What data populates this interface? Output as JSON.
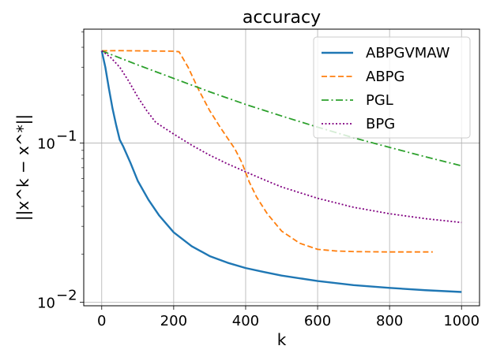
{
  "chart_data": {
    "type": "line",
    "title": "accuracy",
    "xlabel": "k",
    "ylabel": "||x^k − x^*||",
    "xlim": [
      -50,
      1050
    ],
    "ylim": [
      0.0095,
      0.52
    ],
    "yscale": "log",
    "grid": true,
    "legend_position": "top-right",
    "xticks": [
      0,
      200,
      400,
      600,
      800,
      1000
    ],
    "yticks": [
      {
        "value": 0.01,
        "base": "10",
        "exp": "−2"
      },
      {
        "value": 0.1,
        "base": "10",
        "exp": "−1"
      }
    ],
    "series": [
      {
        "name": "ABPGVMAW",
        "color": "#1f77b4",
        "style": "solid",
        "x": [
          0,
          10,
          20,
          30,
          40,
          50,
          60,
          80,
          100,
          130,
          160,
          200,
          250,
          300,
          350,
          400,
          450,
          500,
          600,
          700,
          800,
          900,
          1000
        ],
        "y": [
          0.38,
          0.3,
          0.22,
          0.165,
          0.13,
          0.105,
          0.095,
          0.075,
          0.058,
          0.044,
          0.035,
          0.0275,
          0.0225,
          0.0195,
          0.0177,
          0.0164,
          0.0155,
          0.0147,
          0.0136,
          0.0128,
          0.0123,
          0.0119,
          0.0116
        ]
      },
      {
        "name": "ABPG",
        "color": "#ff7f0e",
        "style": "dashed",
        "x": [
          0,
          50,
          100,
          150,
          200,
          215,
          240,
          270,
          300,
          330,
          370,
          390,
          410,
          430,
          460,
          500,
          550,
          600,
          650,
          700,
          800,
          920
        ],
        "y": [
          0.38,
          0.381,
          0.38,
          0.379,
          0.378,
          0.375,
          0.3,
          0.215,
          0.16,
          0.125,
          0.092,
          0.075,
          0.057,
          0.046,
          0.036,
          0.028,
          0.0235,
          0.0215,
          0.021,
          0.0208,
          0.0207,
          0.0207
        ]
      },
      {
        "name": "PGL",
        "color": "#2ca02c",
        "style": "dashdot",
        "x": [
          0,
          100,
          200,
          300,
          400,
          500,
          600,
          700,
          800,
          900,
          1000
        ],
        "y": [
          0.38,
          0.31,
          0.255,
          0.21,
          0.175,
          0.148,
          0.126,
          0.108,
          0.094,
          0.082,
          0.072
        ]
      },
      {
        "name": "BPG",
        "color": "#800080",
        "style": "dotted",
        "x": [
          0,
          25,
          50,
          75,
          100,
          125,
          150,
          200,
          250,
          300,
          350,
          400,
          450,
          500,
          600,
          700,
          800,
          900,
          1000
        ],
        "y": [
          0.38,
          0.345,
          0.3,
          0.245,
          0.195,
          0.16,
          0.135,
          0.114,
          0.097,
          0.084,
          0.074,
          0.066,
          0.059,
          0.053,
          0.045,
          0.0395,
          0.036,
          0.0335,
          0.0317
        ]
      }
    ]
  }
}
